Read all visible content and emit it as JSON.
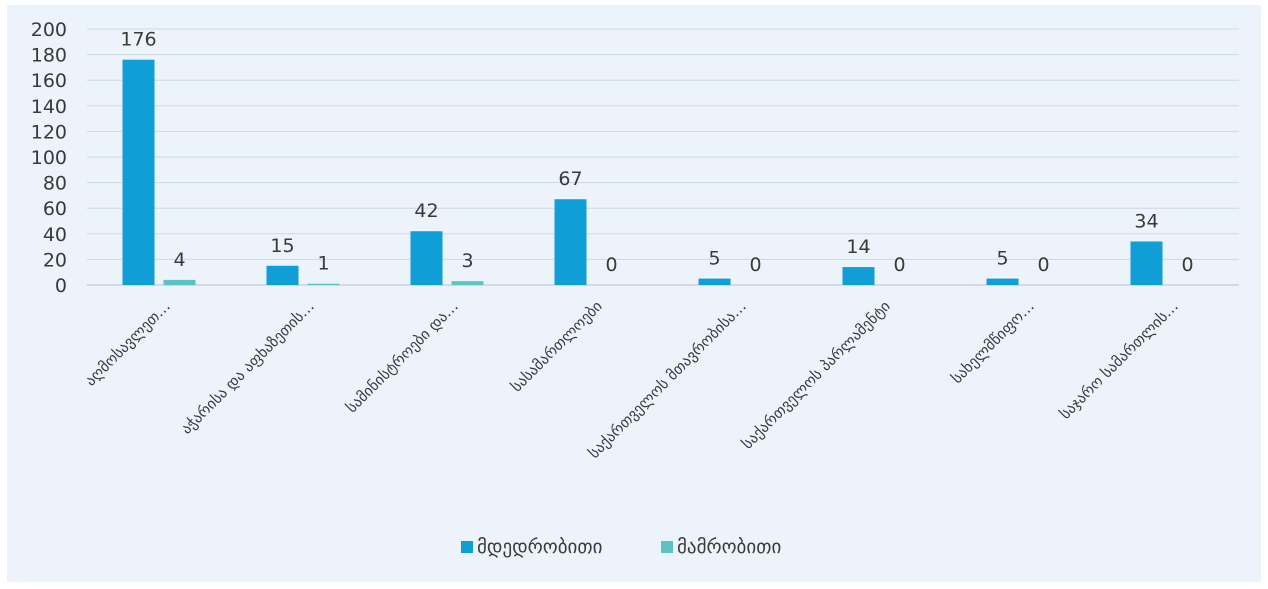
{
  "chart_data": {
    "type": "bar",
    "title": "",
    "xlabel": "",
    "ylabel": "",
    "ylim": [
      0,
      200
    ],
    "yticks": [
      0,
      20,
      40,
      60,
      80,
      100,
      120,
      140,
      160,
      180,
      200
    ],
    "grid": true,
    "legend_position": "bottom",
    "categories": [
      "აღმოსავლეთ…",
      "აჭარისა და აფხაზეთის…",
      "სამინისტროები და…",
      "სასამართლოები",
      "საქართველოს მთავრობისა…",
      "საქართველოს პარლამენტი",
      "სახელმწიფო…",
      "საჯარო სამართლის…"
    ],
    "series": [
      {
        "name": "მდედრობითი",
        "color": "#0f9ed5",
        "values": [
          176,
          15,
          42,
          67,
          5,
          14,
          5,
          34
        ]
      },
      {
        "name": "მამრობითი",
        "color": "#5cc4c0",
        "values": [
          4,
          1,
          3,
          0,
          0,
          0,
          0,
          0
        ]
      }
    ]
  }
}
